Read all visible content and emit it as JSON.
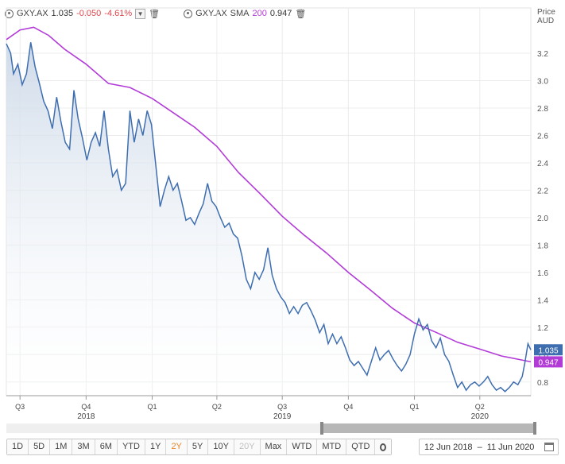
{
  "legend": {
    "ticker": "GXY.AX",
    "last": "1.035",
    "change": "-0.050",
    "change_pct": "-4.61%",
    "sma_ticker": "GXY.AX",
    "sma_label": "SMA",
    "sma_period": "200",
    "sma_value": "0.947"
  },
  "colors": {
    "price_line": "#3e6eb0",
    "area_top": "#cdd9e8",
    "sma_line": "#b23bd8",
    "negative": "#e0474c",
    "active_range": "#e8862a"
  },
  "chart_data": {
    "type": "line",
    "y_axis_title_line1": "Price",
    "y_axis_title_line2": "AUD",
    "ylim": [
      0.7,
      3.38
    ],
    "y_ticks": [
      "0.8",
      "1.0",
      "1.2",
      "1.4",
      "1.6",
      "1.8",
      "2.0",
      "2.2",
      "2.4",
      "2.6",
      "2.8",
      "3.0",
      "3.2"
    ],
    "x_tick_labels": [
      {
        "label": "Q3",
        "year": ""
      },
      {
        "label": "Q4",
        "year": "2018"
      },
      {
        "label": "Q1",
        "year": ""
      },
      {
        "label": "Q2",
        "year": ""
      },
      {
        "label": "Q3",
        "year": "2019"
      },
      {
        "label": "Q4",
        "year": ""
      },
      {
        "label": "Q1",
        "year": ""
      },
      {
        "label": "Q2",
        "year": "2020"
      }
    ],
    "x_tick_dates": [
      "2018-07-01",
      "2018-10-01",
      "2019-01-01",
      "2019-04-01",
      "2019-07-01",
      "2019-10-01",
      "2020-01-01",
      "2020-04-01"
    ],
    "x_range": [
      "2018-06-12",
      "2020-06-11"
    ],
    "series": [
      {
        "name": "GXY.AX",
        "points": [
          [
            "2018-06-12",
            3.27
          ],
          [
            "2018-06-18",
            3.2
          ],
          [
            "2018-06-22",
            3.05
          ],
          [
            "2018-06-28",
            3.12
          ],
          [
            "2018-07-04",
            2.97
          ],
          [
            "2018-07-10",
            3.05
          ],
          [
            "2018-07-16",
            3.28
          ],
          [
            "2018-07-22",
            3.1
          ],
          [
            "2018-07-28",
            2.98
          ],
          [
            "2018-08-03",
            2.85
          ],
          [
            "2018-08-09",
            2.78
          ],
          [
            "2018-08-15",
            2.65
          ],
          [
            "2018-08-21",
            2.88
          ],
          [
            "2018-08-27",
            2.7
          ],
          [
            "2018-09-02",
            2.55
          ],
          [
            "2018-09-08",
            2.5
          ],
          [
            "2018-09-14",
            2.93
          ],
          [
            "2018-09-20",
            2.72
          ],
          [
            "2018-09-26",
            2.58
          ],
          [
            "2018-10-02",
            2.42
          ],
          [
            "2018-10-08",
            2.55
          ],
          [
            "2018-10-14",
            2.62
          ],
          [
            "2018-10-20",
            2.52
          ],
          [
            "2018-10-26",
            2.78
          ],
          [
            "2018-11-01",
            2.5
          ],
          [
            "2018-11-07",
            2.3
          ],
          [
            "2018-11-13",
            2.35
          ],
          [
            "2018-11-19",
            2.2
          ],
          [
            "2018-11-25",
            2.25
          ],
          [
            "2018-12-01",
            2.78
          ],
          [
            "2018-12-07",
            2.55
          ],
          [
            "2018-12-13",
            2.72
          ],
          [
            "2018-12-19",
            2.6
          ],
          [
            "2018-12-25",
            2.78
          ],
          [
            "2018-12-31",
            2.68
          ],
          [
            "2019-01-06",
            2.38
          ],
          [
            "2019-01-12",
            2.08
          ],
          [
            "2019-01-18",
            2.2
          ],
          [
            "2019-01-24",
            2.3
          ],
          [
            "2019-01-30",
            2.2
          ],
          [
            "2019-02-05",
            2.25
          ],
          [
            "2019-02-11",
            2.12
          ],
          [
            "2019-02-17",
            1.98
          ],
          [
            "2019-02-23",
            2.0
          ],
          [
            "2019-03-01",
            1.95
          ],
          [
            "2019-03-07",
            2.03
          ],
          [
            "2019-03-13",
            2.1
          ],
          [
            "2019-03-19",
            2.25
          ],
          [
            "2019-03-25",
            2.12
          ],
          [
            "2019-03-31",
            2.08
          ],
          [
            "2019-04-06",
            2.0
          ],
          [
            "2019-04-12",
            1.93
          ],
          [
            "2019-04-18",
            1.96
          ],
          [
            "2019-04-24",
            1.88
          ],
          [
            "2019-04-30",
            1.85
          ],
          [
            "2019-05-06",
            1.72
          ],
          [
            "2019-05-12",
            1.55
          ],
          [
            "2019-05-18",
            1.48
          ],
          [
            "2019-05-24",
            1.6
          ],
          [
            "2019-05-30",
            1.55
          ],
          [
            "2019-06-05",
            1.62
          ],
          [
            "2019-06-11",
            1.78
          ],
          [
            "2019-06-17",
            1.58
          ],
          [
            "2019-06-23",
            1.48
          ],
          [
            "2019-06-29",
            1.42
          ],
          [
            "2019-07-05",
            1.38
          ],
          [
            "2019-07-11",
            1.3
          ],
          [
            "2019-07-17",
            1.35
          ],
          [
            "2019-07-23",
            1.3
          ],
          [
            "2019-07-29",
            1.36
          ],
          [
            "2019-08-04",
            1.38
          ],
          [
            "2019-08-10",
            1.32
          ],
          [
            "2019-08-16",
            1.25
          ],
          [
            "2019-08-22",
            1.16
          ],
          [
            "2019-08-28",
            1.22
          ],
          [
            "2019-09-03",
            1.08
          ],
          [
            "2019-09-09",
            1.15
          ],
          [
            "2019-09-15",
            1.08
          ],
          [
            "2019-09-21",
            1.13
          ],
          [
            "2019-09-27",
            1.05
          ],
          [
            "2019-10-03",
            0.96
          ],
          [
            "2019-10-09",
            0.92
          ],
          [
            "2019-10-15",
            0.95
          ],
          [
            "2019-10-21",
            0.9
          ],
          [
            "2019-10-27",
            0.85
          ],
          [
            "2019-11-02",
            0.95
          ],
          [
            "2019-11-08",
            1.05
          ],
          [
            "2019-11-14",
            0.96
          ],
          [
            "2019-11-20",
            1.0
          ],
          [
            "2019-11-26",
            1.03
          ],
          [
            "2019-12-02",
            0.97
          ],
          [
            "2019-12-08",
            0.92
          ],
          [
            "2019-12-14",
            0.88
          ],
          [
            "2019-12-20",
            0.93
          ],
          [
            "2019-12-26",
            1.0
          ],
          [
            "2020-01-01",
            1.15
          ],
          [
            "2020-01-07",
            1.26
          ],
          [
            "2020-01-13",
            1.18
          ],
          [
            "2020-01-19",
            1.22
          ],
          [
            "2020-01-25",
            1.1
          ],
          [
            "2020-01-31",
            1.05
          ],
          [
            "2020-02-06",
            1.12
          ],
          [
            "2020-02-12",
            1.0
          ],
          [
            "2020-02-18",
            0.95
          ],
          [
            "2020-02-24",
            0.85
          ],
          [
            "2020-03-01",
            0.76
          ],
          [
            "2020-03-07",
            0.8
          ],
          [
            "2020-03-13",
            0.74
          ],
          [
            "2020-03-19",
            0.78
          ],
          [
            "2020-03-25",
            0.8
          ],
          [
            "2020-03-31",
            0.77
          ],
          [
            "2020-04-06",
            0.8
          ],
          [
            "2020-04-12",
            0.84
          ],
          [
            "2020-04-18",
            0.78
          ],
          [
            "2020-04-24",
            0.74
          ],
          [
            "2020-04-30",
            0.76
          ],
          [
            "2020-05-06",
            0.73
          ],
          [
            "2020-05-12",
            0.76
          ],
          [
            "2020-05-18",
            0.8
          ],
          [
            "2020-05-24",
            0.78
          ],
          [
            "2020-05-30",
            0.84
          ],
          [
            "2020-06-03",
            0.95
          ],
          [
            "2020-06-07",
            1.08
          ],
          [
            "2020-06-11",
            1.035
          ]
        ]
      },
      {
        "name": "GXY.AX SMA 200",
        "points": [
          [
            "2018-06-12",
            3.3
          ],
          [
            "2018-07-01",
            3.37
          ],
          [
            "2018-07-20",
            3.39
          ],
          [
            "2018-08-10",
            3.33
          ],
          [
            "2018-09-01",
            3.23
          ],
          [
            "2018-10-01",
            3.12
          ],
          [
            "2018-11-01",
            2.98
          ],
          [
            "2018-12-01",
            2.95
          ],
          [
            "2019-01-01",
            2.87
          ],
          [
            "2019-02-01",
            2.76
          ],
          [
            "2019-03-01",
            2.66
          ],
          [
            "2019-04-01",
            2.52
          ],
          [
            "2019-05-01",
            2.33
          ],
          [
            "2019-06-01",
            2.17
          ],
          [
            "2019-07-01",
            2.01
          ],
          [
            "2019-08-01",
            1.87
          ],
          [
            "2019-09-01",
            1.74
          ],
          [
            "2019-10-01",
            1.6
          ],
          [
            "2019-11-01",
            1.47
          ],
          [
            "2019-12-01",
            1.34
          ],
          [
            "2020-01-01",
            1.23
          ],
          [
            "2020-02-01",
            1.16
          ],
          [
            "2020-03-01",
            1.09
          ],
          [
            "2020-04-01",
            1.04
          ],
          [
            "2020-05-01",
            0.99
          ],
          [
            "2020-06-11",
            0.947
          ]
        ]
      }
    ],
    "legend": "top-left",
    "grid": true
  },
  "range_buttons": [
    "1D",
    "5D",
    "1M",
    "3M",
    "6M",
    "YTD",
    "1Y",
    "2Y",
    "5Y",
    "10Y",
    "20Y",
    "Max",
    "WTD",
    "MTD",
    "QTD"
  ],
  "active_range": "2Y",
  "disabled_range": "20Y",
  "date_range": {
    "start": "12 Jun 2018",
    "separator": "–",
    "end": "11 Jun 2020"
  }
}
